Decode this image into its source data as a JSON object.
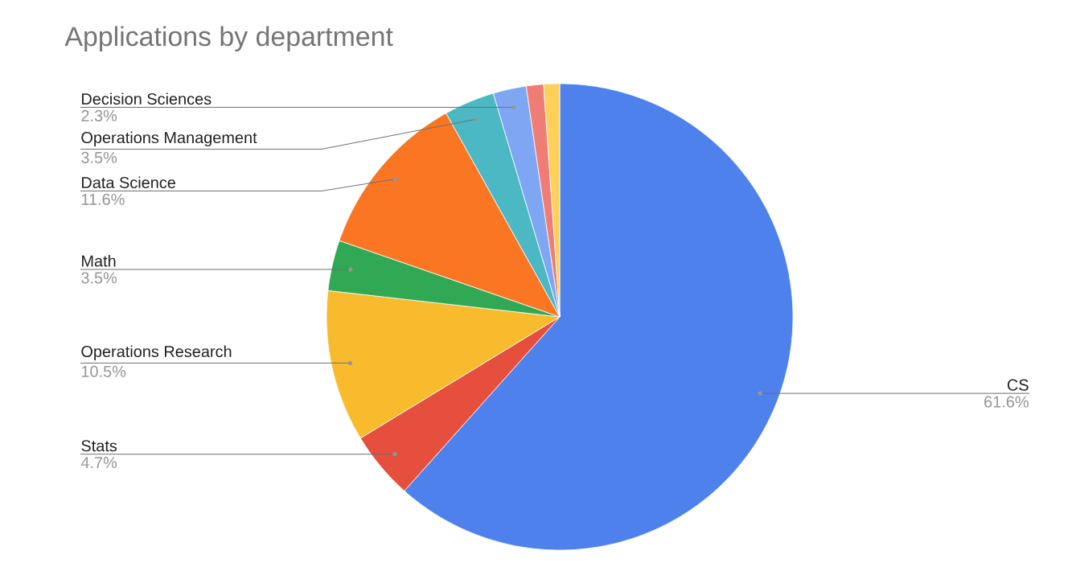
{
  "chart_data": {
    "type": "pie",
    "title": "Applications by department",
    "categories": [
      "CS",
      "Stats",
      "Operations Research",
      "Math",
      "Data Science",
      "Operations Management",
      "Decision Sciences",
      null,
      null
    ],
    "values": [
      61.6,
      4.7,
      10.5,
      3.5,
      11.6,
      3.5,
      2.3,
      1.2,
      1.1
    ],
    "colors": [
      "#4f81ec",
      "#e64e3d",
      "#f8bb2e",
      "#31a853",
      "#fa7623",
      "#4bb8c4",
      "#7ea6f2",
      "#ef7d76",
      "#fdd05a"
    ],
    "value_labels": [
      "61.6%",
      "4.7%",
      "10.5%",
      "3.5%",
      "11.6%",
      "3.5%",
      "2.3%",
      null,
      null
    ]
  }
}
